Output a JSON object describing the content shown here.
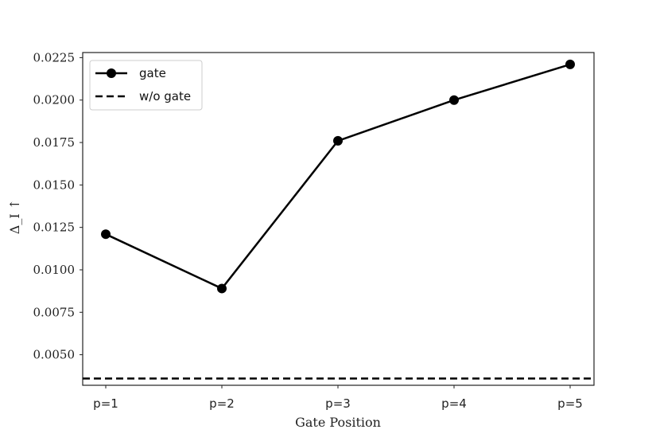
{
  "chart_data": {
    "type": "line",
    "x_label": "Gate Position",
    "y_label": "Δ_I ↑",
    "categories": [
      "p=1",
      "p=2",
      "p=3",
      "p=4",
      "p=5"
    ],
    "ylim": [
      0.0032,
      0.0228
    ],
    "yticks": [
      "0.0050",
      "0.0075",
      "0.0100",
      "0.0125",
      "0.0150",
      "0.0175",
      "0.0200",
      "0.0225"
    ],
    "grid": false,
    "legend_position": "top-left",
    "series": [
      {
        "name": "gate",
        "style": "solid-with-markers",
        "color": "#000000",
        "values": [
          0.0121,
          0.0089,
          0.0176,
          0.02,
          0.0221
        ]
      },
      {
        "name": "w/o gate",
        "style": "dashed",
        "color": "#000000",
        "values": [
          0.0036,
          0.0036,
          0.0036,
          0.0036,
          0.0036
        ]
      }
    ]
  }
}
